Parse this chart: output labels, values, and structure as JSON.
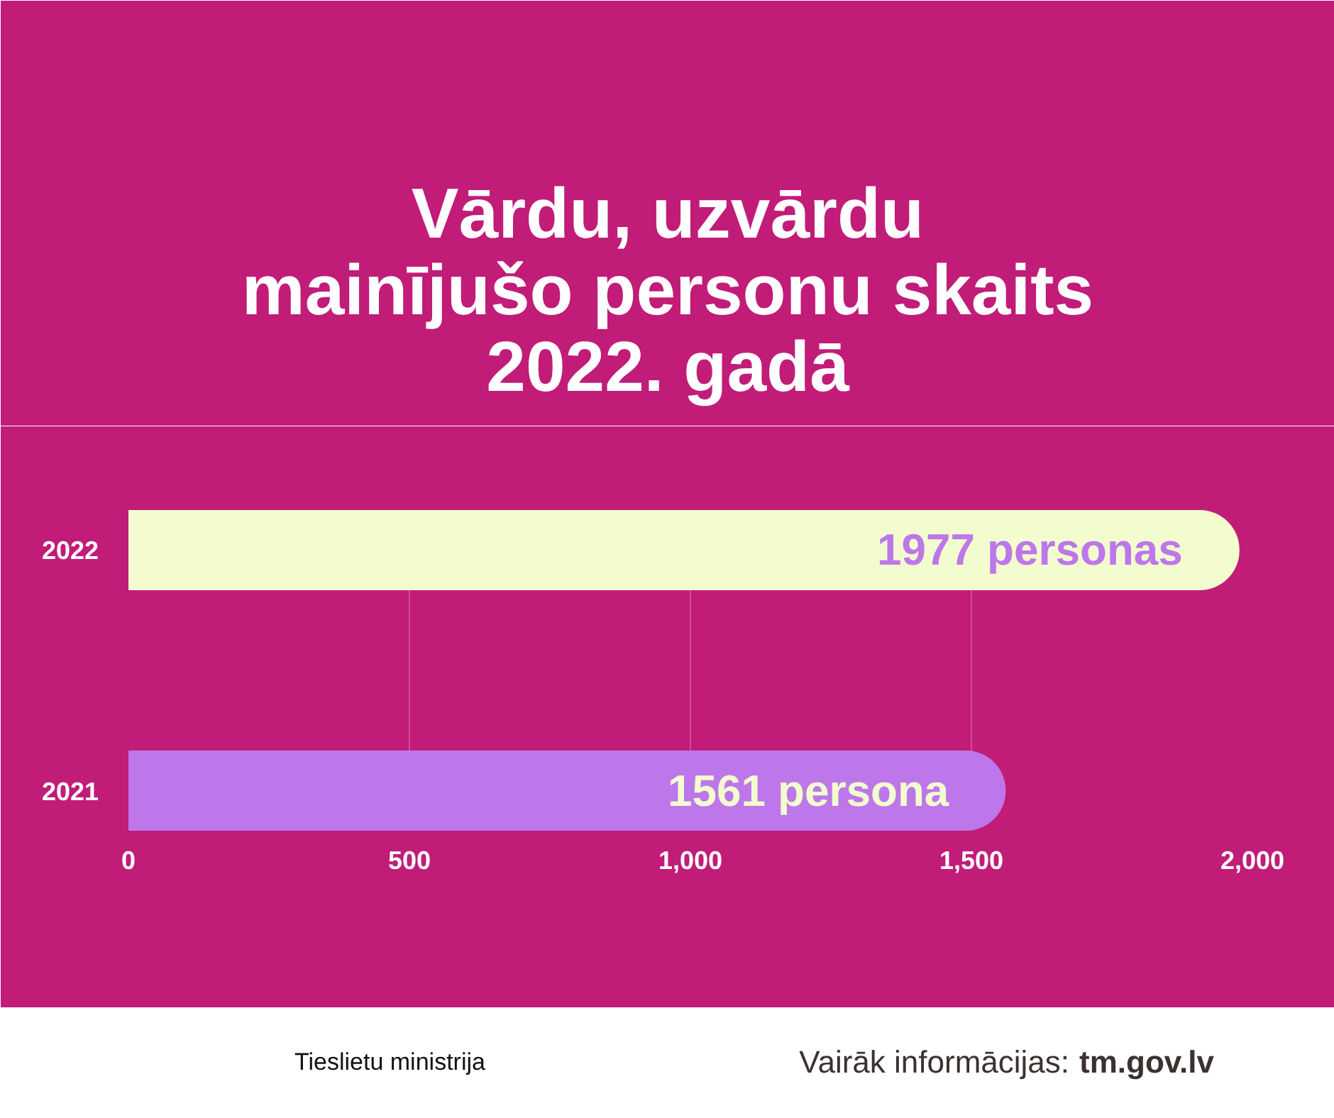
{
  "chart_data": {
    "type": "bar",
    "orientation": "horizontal",
    "title": "Vārdu, uzvārdu\nmainījušo personu skaits\n2022. gadā",
    "categories": [
      "2022",
      "2021"
    ],
    "values": [
      1977,
      1561
    ],
    "colors": [
      "#f3fcce",
      "#bd77ea"
    ],
    "value_labels": [
      "1977 personas",
      "1561 persona"
    ],
    "xlim": [
      0,
      2000
    ],
    "xticks": [
      0,
      500,
      {
        "value": 1000,
        "label": "1,000"
      },
      {
        "value": 1500,
        "label": "1,500"
      },
      {
        "value": 2000,
        "label": "2,000"
      }
    ],
    "grid": "x",
    "annotations": [
      "Tieslietu ministrija",
      "Vairāk informācijas: tm.gov.lv"
    ]
  }
}
